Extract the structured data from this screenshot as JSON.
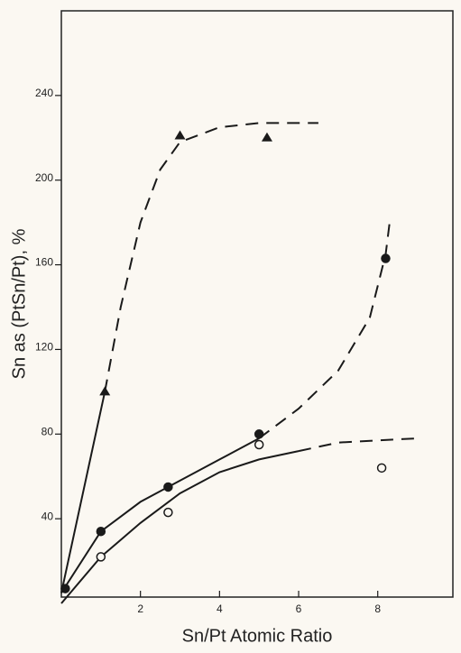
{
  "chart_data": {
    "type": "scatter",
    "x_label": "Sn/Pt Atomic Ratio",
    "y_label": "Sn as (PtSn/Pt), %",
    "xlim": [
      0,
      9.9
    ],
    "ylim": [
      0,
      280
    ],
    "xticks": [
      2,
      4,
      6,
      8
    ],
    "yticks": [
      40,
      80,
      120,
      160,
      200,
      240
    ],
    "color": "#1a1a1a",
    "series": [
      {
        "marker": "triangle",
        "x": [
          1.1,
          3.0,
          5.2
        ],
        "values": [
          100,
          221,
          220
        ]
      },
      {
        "marker": "filled-circle",
        "x": [
          0.1,
          1.0,
          2.7,
          5.0,
          8.2
        ],
        "values": [
          7,
          34,
          55,
          80,
          163
        ]
      },
      {
        "marker": "open-circle",
        "x": [
          1.0,
          2.7,
          5.0,
          8.1
        ],
        "values": [
          22,
          43,
          75,
          64
        ]
      }
    ],
    "curves": [
      {
        "dashed": false,
        "x": [
          0,
          1.1
        ],
        "values": [
          5,
          100
        ]
      },
      {
        "dashed": true,
        "x": [
          1.1,
          1.5,
          2.0,
          2.5,
          3.0,
          4.0,
          5.0,
          6.5
        ],
        "values": [
          100,
          140,
          180,
          205,
          218,
          225,
          227,
          227
        ]
      },
      {
        "dashed": false,
        "x": [
          0,
          1.0,
          2.0,
          2.7,
          4.0,
          5.0
        ],
        "values": [
          5,
          34,
          48,
          55,
          68,
          78
        ]
      },
      {
        "dashed": true,
        "x": [
          5.0,
          6.0,
          7.0,
          7.8,
          8.2,
          8.3
        ],
        "values": [
          78,
          92,
          110,
          135,
          165,
          180
        ]
      },
      {
        "dashed": false,
        "x": [
          0,
          1.0,
          2.0,
          3.0,
          4.0,
          5.0,
          6.0
        ],
        "values": [
          0,
          22,
          38,
          52,
          62,
          68,
          72
        ]
      },
      {
        "dashed": true,
        "x": [
          6.0,
          7.0,
          8.0,
          9.0
        ],
        "values": [
          72,
          76,
          77,
          78
        ]
      }
    ]
  }
}
